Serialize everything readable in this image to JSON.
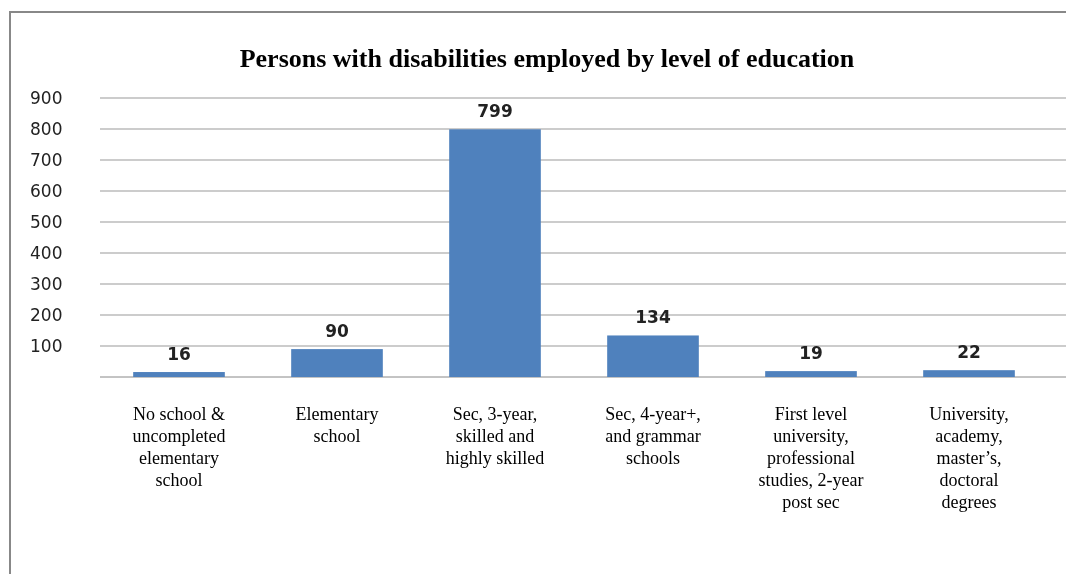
{
  "chart_data": {
    "type": "bar",
    "title": "Persons with disabilities employed by level of education",
    "categories": [
      "No school & uncompleted elementary school",
      "Elementary school",
      "Sec, 3-year, skilled and highly skilled",
      "Sec, 4-year+, and grammar schools",
      "First level university, professional studies, 2-year post sec",
      "University, academy, master’s, doctoral degrees"
    ],
    "values": [
      16,
      90,
      799,
      134,
      19,
      22
    ],
    "color": "#4f81bd",
    "ylim": [
      0,
      900
    ],
    "yticks": [
      100,
      200,
      300,
      400,
      500,
      600,
      700,
      800,
      900
    ],
    "grid": "y",
    "data_labels": true
  }
}
